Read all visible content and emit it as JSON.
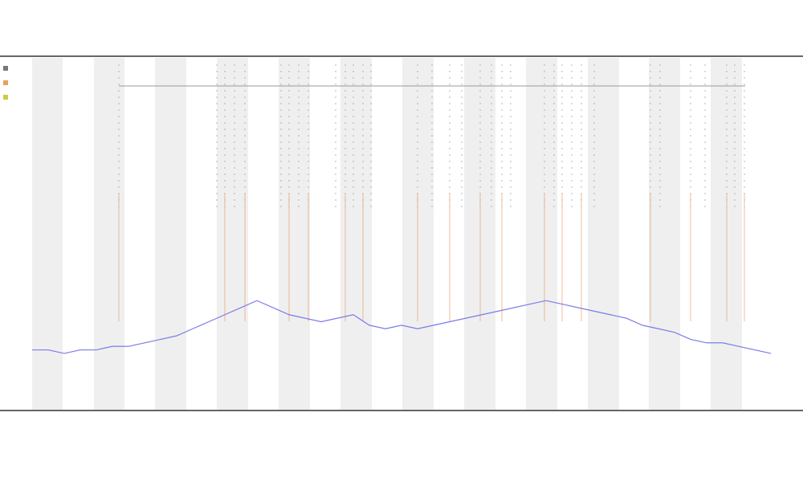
{
  "chart_data": {
    "type": "line",
    "color": "#7b7bea",
    "x": [
      0,
      1,
      2,
      3,
      4,
      5,
      6,
      7,
      8,
      9,
      10,
      11,
      12,
      13,
      14,
      15,
      16,
      17,
      18,
      19,
      20,
      21,
      22,
      23,
      24,
      25,
      26,
      27,
      28,
      29,
      30,
      31,
      32,
      33,
      34,
      35,
      36,
      37,
      38,
      39,
      40,
      41,
      42,
      43,
      44,
      45,
      46
    ],
    "values": [
      17,
      17,
      16,
      17,
      17,
      18,
      18,
      19,
      20,
      21,
      23,
      25,
      27,
      29,
      31,
      29,
      27,
      26,
      25,
      26,
      27,
      24,
      23,
      24,
      23,
      24,
      25,
      26,
      27,
      28,
      29,
      30,
      31,
      30,
      29,
      28,
      27,
      26,
      24,
      23,
      22,
      20,
      19,
      19,
      18,
      17,
      16
    ],
    "xlim": [
      0,
      46
    ],
    "ylim": [
      0,
      100
    ]
  }
}
